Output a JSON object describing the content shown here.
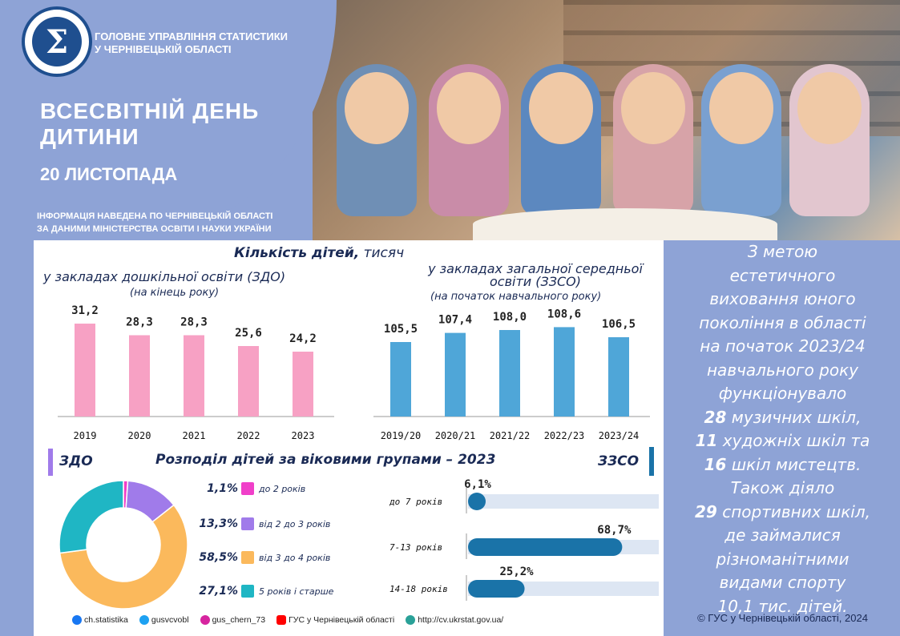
{
  "header": {
    "org_line1": "ГОЛОВНЕ УПРАВЛІННЯ СТАТИСТИКИ",
    "org_line2": "У ЧЕРНІВЕЦЬКІЙ ОБЛАСТІ",
    "title_line1": "ВСЕСВІТНІЙ ДЕНЬ",
    "title_line2": "ДИТИНИ",
    "date": "20 ЛИСТОПАДА",
    "info_line1": "ІНФОРМАЦІЯ НАВЕДЕНА ПО ЧЕРНІВЕЦЬКІЙ ОБЛАСТІ",
    "info_line2": "ЗА ДАНИМИ МІНІСТЕРСТВА ОСВІТИ І НАУКИ УКРАЇНИ",
    "logo_letter": "Σ"
  },
  "colors": {
    "pink": "#f7a1c4",
    "blue": "#4fa6d8",
    "dark_blue": "#1a73a8",
    "donut_teal": "#1fb6c4",
    "donut_purple": "#a07bea",
    "donut_orange": "#fbb95c",
    "donut_magenta": "#f03fc9"
  },
  "main": {
    "title_bold": "Кількість дітей,",
    "title_rest": " тисяч",
    "left_title": "у закладах дошкільної освіти (ЗДО)",
    "left_sub": "(на кінець року)",
    "right_title_l1": "у закладах загальної середньої",
    "right_title_l2": "освіти (ЗЗСО)",
    "right_sub": "(на початок навчального року)",
    "dist_left": "ЗДО",
    "dist_title": "Розподіл дітей за віковими групами – 2023",
    "dist_right": "ЗЗСО"
  },
  "chart_data": [
    {
      "type": "bar",
      "title": "у закладах дошкільної освіти (ЗДО)",
      "categories": [
        "2019",
        "2020",
        "2021",
        "2022",
        "2023"
      ],
      "values": [
        31.2,
        28.3,
        28.3,
        25.6,
        24.2
      ],
      "value_labels": [
        "31,2",
        "28,3",
        "28,3",
        "25,6",
        "24,2"
      ]
    },
    {
      "type": "bar",
      "title": "у закладах загальної середньої освіти (ЗЗСО)",
      "categories": [
        "2019/20",
        "2020/21",
        "2021/22",
        "2022/23",
        "2023/24"
      ],
      "values": [
        105.5,
        107.4,
        108.0,
        108.6,
        106.5
      ],
      "value_labels": [
        "105,5",
        "107,4",
        "108,0",
        "108,6",
        "106,5"
      ]
    },
    {
      "type": "pie",
      "title": "ЗДО",
      "categories": [
        "до 2 років",
        "від 2 до 3 років",
        "від 3 до 4 років",
        "5 років і старше"
      ],
      "values": [
        1.1,
        13.3,
        58.5,
        27.1
      ],
      "value_labels": [
        "1,1%",
        "13,3%",
        "58,5%",
        "27,1%"
      ]
    },
    {
      "type": "bar",
      "title": "ЗЗСО",
      "categories": [
        "до 7 років",
        "7-13 років",
        "14-18 років"
      ],
      "values": [
        6.1,
        68.7,
        25.2
      ],
      "value_labels": [
        "6,1%",
        "68,7%",
        "25,2%"
      ]
    }
  ],
  "footer": {
    "facebook": "ch.statistika",
    "twitter": "gusvcvobl",
    "instagram": "gus_chern_73",
    "youtube": "ГУС у Чернівецькій області",
    "web": "http://cv.ukrstat.gov.ua/"
  },
  "right_panel": {
    "l1": "З метою",
    "l2": "естетичного",
    "l3": "виховання юного",
    "l4": "покоління в області",
    "l5": "на початок 2023/24",
    "l6": "навчального року",
    "l7": "функціонувало",
    "n1": "28",
    "l8": " музичних шкіл,",
    "n2": "11",
    "l9": " художніх шкіл та",
    "n3": "16",
    "l10": " шкіл мистецтв.",
    "l11": "Також діяло",
    "n4": "29",
    "l12": " спортивних шкіл,",
    "l13": "де займалися",
    "l14": "різноманітними",
    "l15": "видами спорту",
    "l16": "10,1 тис. дітей.",
    "copyright": "© ГУС у Чернівецькій області, 2024"
  }
}
